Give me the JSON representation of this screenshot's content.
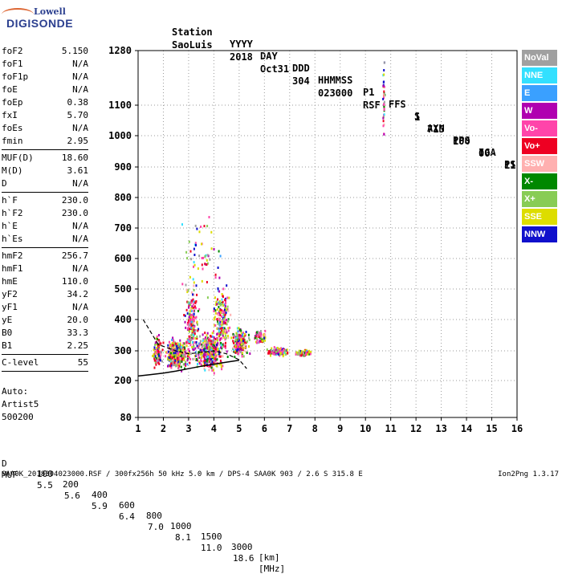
{
  "logo": {
    "line1": "Lowell",
    "line2": "DIGISONDE"
  },
  "header": {
    "row1": [
      "Station",
      "YYYY",
      "DAY",
      "DDD",
      "HHMMSS",
      "P1",
      "FFS",
      "S",
      "AXN",
      "PPS",
      "IGA",
      "PS"
    ],
    "row2": [
      "SaoLuis",
      "2018",
      "Oct31",
      "304",
      "023000",
      "RSF",
      "1",
      "715",
      "100",
      "00-",
      "11"
    ]
  },
  "params": [
    {
      "key": "foF2",
      "value": "5.150"
    },
    {
      "key": "foF1",
      "value": "N/A"
    },
    {
      "key": "foF1p",
      "value": "N/A"
    },
    {
      "key": "foE",
      "value": "N/A"
    },
    {
      "key": "foEp",
      "value": "0.38"
    },
    {
      "key": "fxI",
      "value": "5.70"
    },
    {
      "key": "foEs",
      "value": "N/A"
    },
    {
      "key": "fmin",
      "value": "2.95"
    },
    {
      "sep": true
    },
    {
      "key": "MUF(D)",
      "value": "18.60"
    },
    {
      "key": "M(D)",
      "value": "3.61"
    },
    {
      "key": "D",
      "value": "N/A"
    },
    {
      "sep": true
    },
    {
      "key": "h`F",
      "value": "230.0"
    },
    {
      "key": "h`F2",
      "value": "230.0"
    },
    {
      "key": "h`E",
      "value": "N/A"
    },
    {
      "key": "h`Es",
      "value": "N/A"
    },
    {
      "sep": true
    },
    {
      "key": "hmF2",
      "value": "256.7"
    },
    {
      "key": "hmF1",
      "value": "N/A"
    },
    {
      "key": "hmE",
      "value": "110.0"
    },
    {
      "key": "yF2",
      "value": "34.2"
    },
    {
      "key": "yF1",
      "value": "N/A"
    },
    {
      "key": "yE",
      "value": "20.0"
    },
    {
      "key": "B0",
      "value": "33.3"
    },
    {
      "key": "B1",
      "value": "2.25"
    },
    {
      "sep": true
    },
    {
      "key": "C-level",
      "value": "55"
    },
    {
      "sep": true
    }
  ],
  "auto": [
    "Auto:",
    "Artist5",
    "500200"
  ],
  "bottom": {
    "d_label": "D",
    "d_values": [
      "100",
      "200",
      "400",
      "600",
      "800",
      "1000",
      "1500",
      "3000"
    ],
    "d_unit": "[km]",
    "muf_label": "MUF",
    "muf_values": [
      "5.5",
      "5.6",
      "5.9",
      "6.4",
      "7.0",
      "8.1",
      "11.0",
      "18.6"
    ],
    "muf_unit": "[MHz]"
  },
  "footer": {
    "left": "SAA0K_2018304023000.RSF / 300fx256h 50 kHz 5.0 km / DPS-4 SAA0K 903 / 2.6 S 315.8 E",
    "right": "Ion2Png 1.3.17"
  },
  "legend": [
    {
      "label": "NoVal",
      "color": "#a0a0a0"
    },
    {
      "label": "NNE",
      "color": "#33e0ff"
    },
    {
      "label": "E",
      "color": "#3aa0ff"
    },
    {
      "label": "W",
      "color": "#b000b0"
    },
    {
      "label": "Vo-",
      "color": "#ff44aa"
    },
    {
      "label": "Vo+",
      "color": "#ee0022"
    },
    {
      "label": "SSW",
      "color": "#ffb0b0"
    },
    {
      "label": "X-",
      "color": "#008800"
    },
    {
      "label": "X+",
      "color": "#88cc55"
    },
    {
      "label": "SSE",
      "color": "#dddd00"
    },
    {
      "label": "NNW",
      "color": "#1010cc"
    }
  ],
  "chart_data": {
    "type": "scatter",
    "xlabel": "",
    "ylabel": "",
    "xlim": [
      1,
      16
    ],
    "ylim": [
      80,
      1280
    ],
    "x_ticks": [
      1,
      2,
      3,
      4,
      5,
      6,
      7,
      8,
      9,
      10,
      11,
      12,
      13,
      14,
      15,
      16
    ],
    "y_ticks": [
      80,
      200,
      300,
      400,
      500,
      600,
      700,
      800,
      900,
      1000,
      1100,
      1280
    ],
    "grid": true,
    "legend_position": "right",
    "trace_curve": {
      "x": [
        1.0,
        1.5,
        2.0,
        2.5,
        3.0,
        3.5,
        4.0,
        4.5,
        5.0
      ],
      "y": [
        215,
        220,
        225,
        232,
        240,
        248,
        255,
        262,
        268
      ]
    },
    "dashed_curve": {
      "x": [
        1.2,
        1.8,
        2.5,
        3.0,
        3.5,
        4.0,
        4.5,
        5.0,
        5.3
      ],
      "y": [
        400,
        320,
        300,
        290,
        295,
        300,
        290,
        270,
        240
      ]
    },
    "echo_clusters": [
      {
        "x": 1.75,
        "y": 300,
        "dx": 0.25,
        "dy": 70,
        "n": 90
      },
      {
        "x": 2.5,
        "y": 290,
        "dx": 0.6,
        "dy": 60,
        "n": 380
      },
      {
        "x": 3.1,
        "y": 380,
        "dx": 0.35,
        "dy": 150,
        "n": 200
      },
      {
        "x": 3.8,
        "y": 300,
        "dx": 0.7,
        "dy": 80,
        "n": 380
      },
      {
        "x": 4.3,
        "y": 400,
        "dx": 0.45,
        "dy": 140,
        "n": 200
      },
      {
        "x": 5.0,
        "y": 330,
        "dx": 0.45,
        "dy": 60,
        "n": 200
      },
      {
        "x": 5.8,
        "y": 350,
        "dx": 0.4,
        "dy": 30,
        "n": 60
      },
      {
        "x": 6.5,
        "y": 300,
        "dx": 0.5,
        "dy": 18,
        "n": 110
      },
      {
        "x": 7.5,
        "y": 295,
        "dx": 0.5,
        "dy": 14,
        "n": 70
      },
      {
        "x": 10.7,
        "y": 1120,
        "dx": 0.05,
        "dy": 150,
        "n": 40
      },
      {
        "x": 3.5,
        "y": 600,
        "dx": 1.0,
        "dy": 200,
        "n": 60
      }
    ]
  }
}
